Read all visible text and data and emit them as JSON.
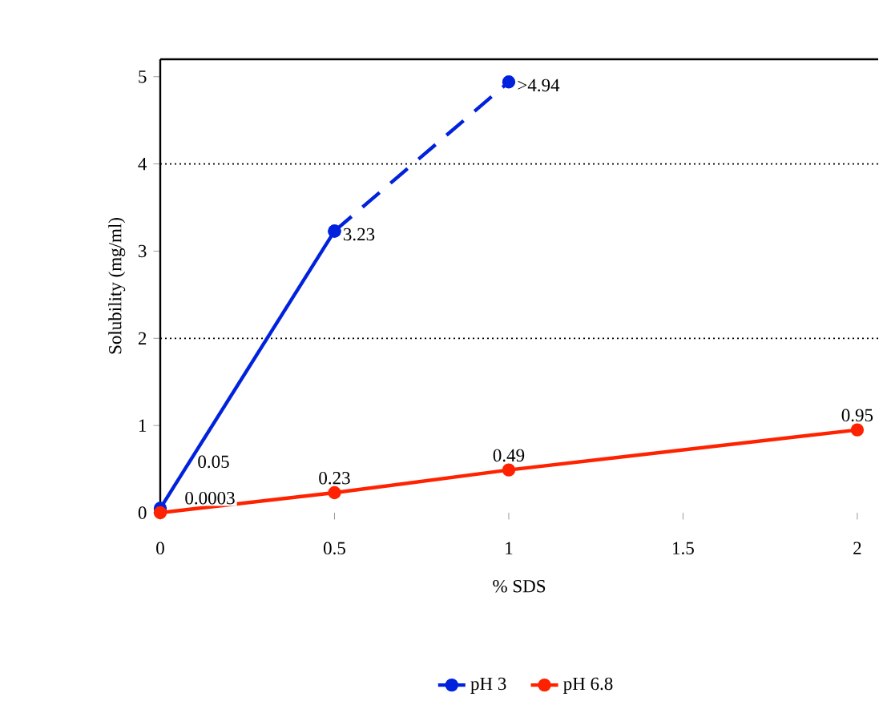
{
  "chart_data": {
    "type": "line",
    "xlabel": "% SDS",
    "ylabel": "Solubility (mg/ml)",
    "xlim": [
      0,
      2.06
    ],
    "ylim": [
      0,
      5.2
    ],
    "xticks": [
      0,
      0.5,
      1,
      1.5,
      2
    ],
    "yticks": [
      0,
      1,
      2,
      3,
      4,
      5
    ],
    "legend": "bottom",
    "marker": "circle",
    "ref_lines": [
      {
        "axis": "y",
        "value": 2,
        "color": "#000000",
        "line_style": "dotted"
      },
      {
        "axis": "y",
        "value": 4,
        "color": "#000000",
        "line_style": "dotted"
      }
    ],
    "series": [
      {
        "name": "pH 3",
        "color": "#0022dd",
        "x": [
          0,
          0.5
        ],
        "values": [
          0.05,
          3.23
        ],
        "value_labels": [
          "0.05",
          "3.23"
        ],
        "line_style": "solid"
      },
      {
        "color": "#0022dd",
        "x": [
          0.5,
          1
        ],
        "values": [
          3.23,
          4.94
        ],
        "value_labels": [
          null,
          ">4.94"
        ],
        "line_style": "dashed"
      },
      {
        "name": "pH 6.8",
        "color": "#ff2200",
        "x": [
          0,
          0.5,
          1,
          2
        ],
        "values": [
          0.0003,
          0.23,
          0.49,
          0.95
        ],
        "value_labels": [
          "0.0003",
          "0.23",
          "0.49",
          "0.95"
        ],
        "line_style": "solid"
      }
    ]
  }
}
